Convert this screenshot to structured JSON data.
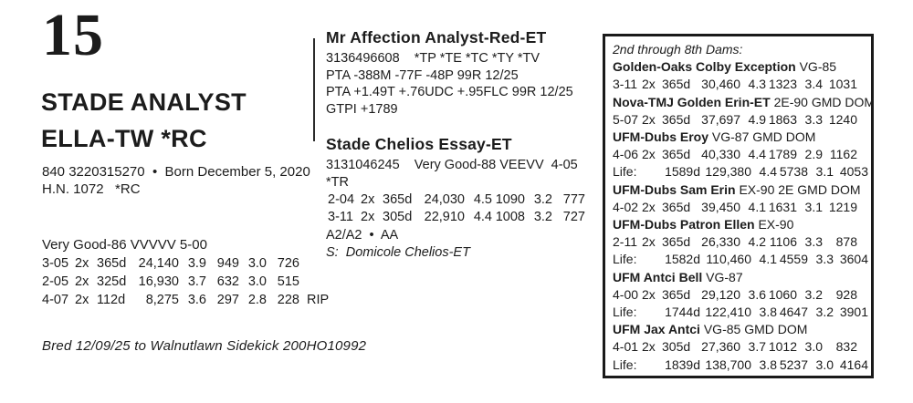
{
  "page": {
    "lot_number": "15",
    "animal": {
      "name_line1": "STADE ANALYST",
      "name_line2": "ELLA-TW *RC",
      "reg_line": "840 3220315270  •  Born December 5, 2020",
      "herd_line": "H.N. 1072   *RC",
      "classification": "Very Good-86 VVVVV 5-00",
      "records": [
        [
          "3-05",
          "2x",
          "365d",
          "24,140",
          "3.9",
          "949",
          "3.0",
          "726",
          ""
        ],
        [
          "2-05",
          "2x",
          "325d",
          "16,930",
          "3.7",
          "632",
          "3.0",
          "515",
          ""
        ],
        [
          "4-07",
          "2x",
          "112d",
          "8,275",
          "3.6",
          "297",
          "2.8",
          "228",
          "RIP"
        ]
      ],
      "bred_line": "Bred 12/09/25 to Walnutlawn Sidekick 200HO10992"
    },
    "sire": {
      "name": "Mr Affection Analyst-Red-ET",
      "lines": [
        "3136496608    *TP *TE *TC *TY *TV",
        "PTA -388M -77F -48P 99R 12/25",
        "PTA +1.49T +.76UDC +.95FLC 99R 12/25",
        "GTPI +1789"
      ]
    },
    "dam": {
      "name": "Stade Chelios Essay-ET",
      "id_line": "3131046245    Very Good-88 VEEVV  4-05  *TR",
      "records": [
        [
          "2-04",
          "2x",
          "365d",
          "24,030",
          "4.5",
          "1090",
          "3.2",
          "777"
        ],
        [
          "3-11",
          "2x",
          "305d",
          "22,910",
          "4.4",
          "1008",
          "3.2",
          "727"
        ]
      ],
      "genotype_line": "A2/A2  •  AA",
      "sire_of_dam": "S:  Domicole Chelios-ET"
    },
    "dams_box": {
      "heading": "2nd through 8th Dams:",
      "entries": [
        {
          "name": "Golden-Oaks Colby Exception",
          "rating": "VG-85",
          "rows": [
            [
              "3-11",
              "2x",
              "365d",
              "30,460",
              "4.3",
              "1323",
              "3.4",
              "1031"
            ]
          ]
        },
        {
          "name": "Nova-TMJ Golden Erin-ET",
          "rating": "2E-90 GMD DOM",
          "rows": [
            [
              "5-07",
              "2x",
              "365d",
              "37,697",
              "4.9",
              "1863",
              "3.3",
              "1240"
            ]
          ]
        },
        {
          "name": "UFM-Dubs Eroy",
          "rating": "VG-87 GMD DOM",
          "rows": [
            [
              "4-06",
              "2x",
              "365d",
              "40,330",
              "4.4",
              "1789",
              "2.9",
              "1162"
            ],
            [
              "Life:",
              "1589d",
              "129,380",
              "4.4",
              "5738",
              "3.1",
              "4053"
            ]
          ]
        },
        {
          "name": "UFM-Dubs Sam Erin",
          "rating": "EX-90 2E GMD DOM",
          "rows": [
            [
              "4-02",
              "2x",
              "365d",
              "39,450",
              "4.1",
              "1631",
              "3.1",
              "1219"
            ]
          ]
        },
        {
          "name": "UFM-Dubs Patron Ellen",
          "rating": "EX-90",
          "rows": [
            [
              "2-11",
              "2x",
              "365d",
              "26,330",
              "4.2",
              "1106",
              "3.3",
              "878"
            ],
            [
              "Life:",
              "1582d",
              "110,460",
              "4.1",
              "4559",
              "3.3",
              "3604"
            ]
          ]
        },
        {
          "name": "UFM Antci Bell",
          "rating": "VG-87",
          "rows": [
            [
              "4-00",
              "2x",
              "365d",
              "29,120",
              "3.6",
              "1060",
              "3.2",
              "928"
            ],
            [
              "Life:",
              "1744d",
              "122,410",
              "3.8",
              "4647",
              "3.2",
              "3901"
            ]
          ]
        },
        {
          "name": "UFM Jax Antci",
          "rating": "VG-85 GMD DOM",
          "rows": [
            [
              "4-01",
              "2x",
              "305d",
              "27,360",
              "3.7",
              "1012",
              "3.0",
              "832"
            ],
            [
              "Life:",
              "1839d",
              "138,700",
              "3.8",
              "5237",
              "3.0",
              "4164"
            ]
          ]
        }
      ]
    }
  }
}
